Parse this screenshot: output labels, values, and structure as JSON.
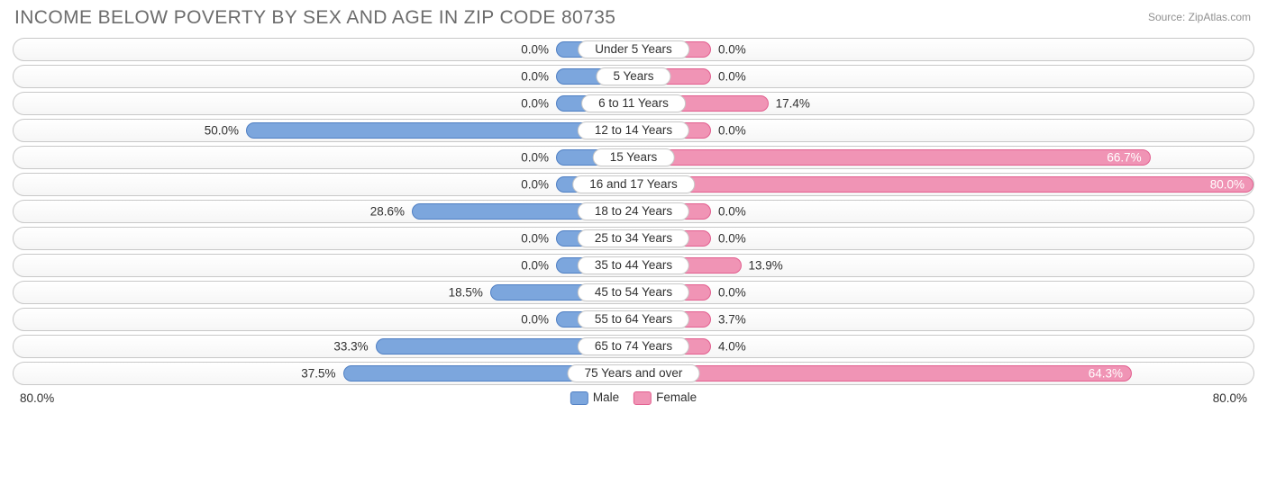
{
  "title": "INCOME BELOW POVERTY BY SEX AND AGE IN ZIP CODE 80735",
  "source": "Source: ZipAtlas.com",
  "axis_max": 80.0,
  "axis_label_left": "80.0%",
  "axis_label_right": "80.0%",
  "min_bar_pct": 10.0,
  "colors": {
    "male_fill": "#7ca6dd",
    "male_border": "#4f7fc3",
    "female_fill": "#f094b5",
    "female_border": "#e25f8f",
    "track_border": "#c8c8c8",
    "text": "#303030",
    "title": "#6c6c6c",
    "source": "#909090",
    "bg": "#ffffff"
  },
  "legend": {
    "male": "Male",
    "female": "Female"
  },
  "rows": [
    {
      "label": "Under 5 Years",
      "male": 0.0,
      "male_label": "0.0%",
      "female": 0.0,
      "female_label": "0.0%"
    },
    {
      "label": "5 Years",
      "male": 0.0,
      "male_label": "0.0%",
      "female": 0.0,
      "female_label": "0.0%"
    },
    {
      "label": "6 to 11 Years",
      "male": 0.0,
      "male_label": "0.0%",
      "female": 17.4,
      "female_label": "17.4%"
    },
    {
      "label": "12 to 14 Years",
      "male": 50.0,
      "male_label": "50.0%",
      "female": 0.0,
      "female_label": "0.0%"
    },
    {
      "label": "15 Years",
      "male": 0.0,
      "male_label": "0.0%",
      "female": 66.7,
      "female_label": "66.7%"
    },
    {
      "label": "16 and 17 Years",
      "male": 0.0,
      "male_label": "0.0%",
      "female": 80.0,
      "female_label": "80.0%"
    },
    {
      "label": "18 to 24 Years",
      "male": 28.6,
      "male_label": "28.6%",
      "female": 0.0,
      "female_label": "0.0%"
    },
    {
      "label": "25 to 34 Years",
      "male": 0.0,
      "male_label": "0.0%",
      "female": 0.0,
      "female_label": "0.0%"
    },
    {
      "label": "35 to 44 Years",
      "male": 0.0,
      "male_label": "0.0%",
      "female": 13.9,
      "female_label": "13.9%"
    },
    {
      "label": "45 to 54 Years",
      "male": 18.5,
      "male_label": "18.5%",
      "female": 0.0,
      "female_label": "0.0%"
    },
    {
      "label": "55 to 64 Years",
      "male": 0.0,
      "male_label": "0.0%",
      "female": 3.7,
      "female_label": "3.7%"
    },
    {
      "label": "65 to 74 Years",
      "male": 33.3,
      "male_label": "33.3%",
      "female": 4.0,
      "female_label": "4.0%"
    },
    {
      "label": "75 Years and over",
      "male": 37.5,
      "male_label": "37.5%",
      "female": 64.3,
      "female_label": "64.3%"
    }
  ]
}
